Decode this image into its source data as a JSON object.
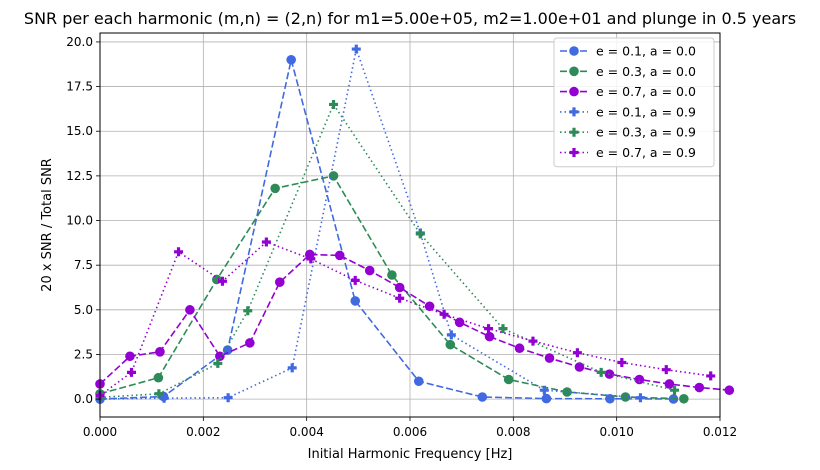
{
  "chart_data": {
    "type": "line",
    "title": "SNR per each harmonic (m,n) = (2,n) for m1=5.00e+05, m2=1.00e+01 and plunge in 0.5 years",
    "xlabel": "Initial Harmonic Frequency [Hz]",
    "ylabel": "20 x SNR / Total SNR",
    "xlim": [
      0.0,
      0.012
    ],
    "ylim": [
      -1.0,
      20.5
    ],
    "xticks": [
      0.0,
      0.002,
      0.004,
      0.006,
      0.008,
      0.01,
      0.012
    ],
    "xtick_labels": [
      "0.000",
      "0.002",
      "0.004",
      "0.006",
      "0.008",
      "0.010",
      "0.012"
    ],
    "yticks": [
      0.0,
      2.5,
      5.0,
      7.5,
      10.0,
      12.5,
      15.0,
      17.5,
      20.0
    ],
    "ytick_labels": [
      "0.0",
      "2.5",
      "5.0",
      "7.5",
      "10.0",
      "12.5",
      "15.0",
      "17.5",
      "20.0"
    ],
    "grid": true,
    "legend_position": "top-right",
    "series": [
      {
        "name": "e = 0.1, a = 0.0",
        "color": "#4169e1",
        "linestyle": "dashed",
        "marker": "circle",
        "x": [
          0.0,
          0.00123,
          0.00247,
          0.0037,
          0.00494,
          0.00617,
          0.0074,
          0.00864,
          0.00987,
          0.0111
        ],
        "y": [
          0.0,
          0.15,
          2.75,
          19.0,
          5.5,
          1.0,
          0.12,
          0.03,
          0.02,
          0.01
        ]
      },
      {
        "name": "e = 0.3, a = 0.0",
        "color": "#2e8b57",
        "linestyle": "dashed",
        "marker": "circle",
        "x": [
          0.0,
          0.00113,
          0.00226,
          0.00339,
          0.00452,
          0.00565,
          0.00678,
          0.00791,
          0.00904,
          0.01017,
          0.0113
        ],
        "y": [
          0.3,
          1.2,
          6.7,
          11.8,
          12.5,
          6.95,
          3.05,
          1.1,
          0.4,
          0.12,
          0.02
        ]
      },
      {
        "name": "e = 0.7, a = 0.0",
        "color": "#9400d3",
        "linestyle": "dashed",
        "marker": "circle",
        "x": [
          0.0,
          0.00058,
          0.00116,
          0.00174,
          0.00232,
          0.0029,
          0.00348,
          0.00406,
          0.00464,
          0.00522,
          0.0058,
          0.00638,
          0.00696,
          0.00754,
          0.00812,
          0.0087,
          0.00928,
          0.00986,
          0.01044,
          0.01102,
          0.0116,
          0.01218
        ],
        "y": [
          0.85,
          2.4,
          2.65,
          5.0,
          2.4,
          3.15,
          6.55,
          8.1,
          8.05,
          7.2,
          6.25,
          5.2,
          4.3,
          3.5,
          2.85,
          2.3,
          1.8,
          1.4,
          1.1,
          0.85,
          0.65,
          0.5
        ]
      },
      {
        "name": "e = 0.1, a = 0.9",
        "color": "#4169e1",
        "linestyle": "dotted",
        "marker": "plus",
        "x": [
          0.0,
          0.00124,
          0.00248,
          0.00372,
          0.00496,
          0.0062,
          0.0068,
          0.0086,
          0.01046
        ],
        "y": [
          0.0,
          0.05,
          0.08,
          1.75,
          19.6,
          9.3,
          3.6,
          0.5,
          0.08
        ]
      },
      {
        "name": "e = 0.3, a = 0.9",
        "color": "#2e8b57",
        "linestyle": "dotted",
        "marker": "plus",
        "x": [
          0.0,
          0.00114,
          0.00228,
          0.00286,
          0.00452,
          0.0062,
          0.0078,
          0.0097,
          0.01112
        ],
        "y": [
          0.1,
          0.3,
          2.0,
          4.95,
          16.5,
          9.25,
          3.95,
          1.5,
          0.5
        ]
      },
      {
        "name": "e = 0.7, a = 0.9",
        "color": "#9400d3",
        "linestyle": "dotted",
        "marker": "plus",
        "x": [
          0.0,
          0.00061,
          0.00152,
          0.00237,
          0.00322,
          0.00408,
          0.00494,
          0.0058,
          0.00666,
          0.00752,
          0.00838,
          0.00924,
          0.0101,
          0.01096,
          0.01182
        ],
        "y": [
          0.2,
          1.5,
          8.25,
          6.6,
          8.8,
          7.85,
          6.65,
          5.65,
          4.75,
          3.95,
          3.25,
          2.6,
          2.05,
          1.65,
          1.3
        ]
      }
    ]
  }
}
